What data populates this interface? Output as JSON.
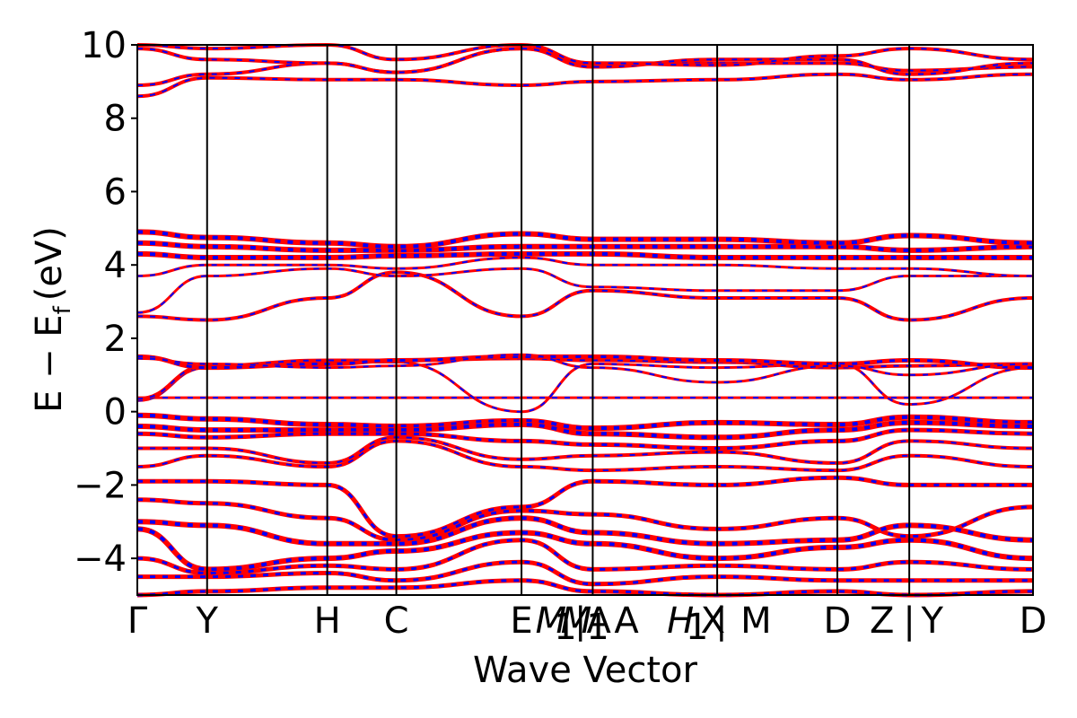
{
  "chart_data": {
    "type": "line",
    "title": "",
    "xlabel": "Wave Vector",
    "ylabel": "E − E",
    "ylabel_sub": "f",
    "ylabel_unit": "(eV)",
    "ylim": [
      -5,
      10
    ],
    "yticks": [
      -4,
      -2,
      0,
      2,
      4,
      6,
      8,
      10
    ],
    "ytick_labels": [
      "−4",
      "−2",
      "0",
      "2",
      "4",
      "6",
      "8",
      "10"
    ],
    "grid": false,
    "legend": "none",
    "series_colors": {
      "spin_a": "#ff0000",
      "spin_b": "#0000ff"
    },
    "x_range": [
      0,
      12.45
    ],
    "high_symmetry_points": [
      {
        "label": "Γ",
        "x": 0.0
      },
      {
        "label": "Y",
        "x": 0.97
      },
      {
        "label": "H",
        "x": 2.64
      },
      {
        "label": "C",
        "x": 3.6
      },
      {
        "label": "E",
        "x": 5.34,
        "italic_suffix": "M",
        "suffix_sub": "1",
        "suffix2": "M"
      },
      {
        "label": "A",
        "x": 6.33,
        "prefix": "|",
        "prefix_italic": "A",
        "prefix_sub": "1"
      },
      {
        "label": "X",
        "x": 8.06,
        "prefix_italic": "H",
        "prefix_sub": "1",
        "suffix": "|"
      },
      {
        "label": "M",
        "x": 8.06
      },
      {
        "label": "D",
        "x": 9.73
      },
      {
        "label": "Z",
        "x": 10.73,
        "suffix": "|"
      },
      {
        "label": "Y",
        "x": 10.73
      },
      {
        "label": "D",
        "x": 12.45
      }
    ],
    "x_tick_texts": [
      {
        "text": "Γ",
        "x": 0.0
      },
      {
        "text": "Y",
        "x": 0.97
      },
      {
        "text": "H",
        "x": 2.64
      },
      {
        "text": "C",
        "x": 3.6
      },
      {
        "text": "E",
        "x": 5.34
      },
      {
        "text": "M",
        "x": 5.75,
        "italic": true
      },
      {
        "text": "1",
        "x": 5.95,
        "sub": true
      },
      {
        "text": "M",
        "x": 6.1,
        "italic": true
      },
      {
        "text": "|A",
        "x": 6.33
      },
      {
        "text": "1",
        "x": 6.4,
        "sub": true
      },
      {
        "text": "A",
        "x": 6.8
      },
      {
        "text": "H",
        "x": 7.55,
        "italic": true
      },
      {
        "text": "1",
        "x": 7.78,
        "sub": true
      },
      {
        "text": "X",
        "x": 8.0
      },
      {
        "text": "|",
        "x": 8.12
      },
      {
        "text": "M",
        "x": 8.6
      },
      {
        "text": "D",
        "x": 9.73
      },
      {
        "text": "Z",
        "x": 10.35
      },
      {
        "text": "|",
        "x": 10.73
      },
      {
        "text": "Y",
        "x": 11.05
      },
      {
        "text": "D",
        "x": 12.45
      }
    ],
    "segment_boundaries": [
      0.0,
      0.97,
      2.64,
      3.6,
      5.34,
      6.33,
      8.06,
      9.73,
      10.73,
      12.45
    ],
    "bands": [
      {
        "name": "flat-band",
        "y": [
          0.38,
          0.38,
          0.38,
          0.38,
          0.38,
          0.38,
          0.38,
          0.38,
          0.38,
          0.38
        ],
        "width": 3
      },
      {
        "name": "cb1",
        "y": [
          0.3,
          1.2,
          1.35,
          1.35,
          0.0,
          1.3,
          1.2,
          1.3,
          0.2,
          1.2
        ],
        "width": 3
      },
      {
        "name": "cb2",
        "y": [
          0.35,
          1.25,
          1.4,
          1.4,
          1.45,
          1.4,
          1.35,
          1.2,
          1.25,
          1.3
        ],
        "width": 4
      },
      {
        "name": "cb3",
        "y": [
          1.5,
          1.2,
          1.3,
          1.4,
          1.5,
          1.5,
          1.4,
          1.3,
          1.4,
          1.2
        ],
        "width": 5
      },
      {
        "name": "cb4",
        "y": [
          1.45,
          1.3,
          1.2,
          1.25,
          1.55,
          1.2,
          0.8,
          1.25,
          1.0,
          1.3
        ],
        "width": 3
      },
      {
        "name": "cb5",
        "y": [
          2.6,
          2.5,
          3.1,
          3.8,
          2.6,
          3.3,
          3.1,
          3.1,
          2.5,
          3.1
        ],
        "width": 4
      },
      {
        "name": "cb6",
        "y": [
          2.7,
          3.7,
          3.9,
          3.7,
          3.9,
          3.4,
          3.3,
          3.3,
          3.7,
          3.7
        ],
        "width": 3
      },
      {
        "name": "cb7",
        "y": [
          3.7,
          4.0,
          4.0,
          3.9,
          4.2,
          4.0,
          4.0,
          3.9,
          3.9,
          3.7
        ],
        "width": 3
      },
      {
        "name": "cb8",
        "y": [
          4.3,
          4.2,
          4.2,
          4.25,
          4.3,
          4.3,
          4.2,
          4.2,
          4.2,
          4.2
        ],
        "width": 6
      },
      {
        "name": "cb9",
        "y": [
          4.6,
          4.5,
          4.4,
          4.4,
          4.5,
          4.5,
          4.5,
          4.5,
          4.4,
          4.5
        ],
        "width": 6
      },
      {
        "name": "cb10",
        "y": [
          4.9,
          4.75,
          4.6,
          4.5,
          4.85,
          4.7,
          4.7,
          4.6,
          4.8,
          4.6
        ],
        "width": 6
      },
      {
        "name": "hb1",
        "y": [
          8.6,
          9.1,
          9.05,
          9.05,
          8.9,
          9.0,
          9.05,
          9.2,
          9.05,
          9.2
        ],
        "width": 4
      },
      {
        "name": "hb2",
        "y": [
          8.9,
          9.2,
          9.5,
          9.25,
          9.9,
          9.5,
          9.5,
          9.5,
          9.3,
          9.4
        ],
        "width": 4
      },
      {
        "name": "hb3",
        "y": [
          9.9,
          9.6,
          9.5,
          9.25,
          9.9,
          9.4,
          9.6,
          9.6,
          9.2,
          9.5
        ],
        "width": 4
      },
      {
        "name": "hb4",
        "y": [
          10.0,
          9.9,
          10.0,
          9.6,
          10.0,
          9.5,
          9.45,
          9.7,
          9.9,
          9.6
        ],
        "width": 4
      },
      {
        "name": "vb1",
        "y": [
          -0.1,
          -0.2,
          -0.35,
          -0.4,
          -0.25,
          -0.45,
          -0.3,
          -0.35,
          -0.15,
          -0.3
        ],
        "width": 6
      },
      {
        "name": "vb2",
        "y": [
          -0.4,
          -0.5,
          -0.5,
          -0.5,
          -0.35,
          -0.6,
          -0.7,
          -0.5,
          -0.3,
          -0.4
        ],
        "width": 6
      },
      {
        "name": "vb3",
        "y": [
          -0.6,
          -0.7,
          -0.6,
          -0.6,
          -0.8,
          -0.9,
          -1.0,
          -0.8,
          -0.5,
          -0.6
        ],
        "width": 5
      },
      {
        "name": "vb4",
        "y": [
          -1.0,
          -1.0,
          -1.4,
          -0.7,
          -1.3,
          -1.2,
          -1.1,
          -1.4,
          -0.8,
          -1.0
        ],
        "width": 4
      },
      {
        "name": "vb5",
        "y": [
          -1.5,
          -1.2,
          -1.5,
          -0.8,
          -1.5,
          -1.6,
          -1.5,
          -1.6,
          -1.2,
          -1.5
        ],
        "width": 4
      },
      {
        "name": "vb6",
        "y": [
          -1.9,
          -1.9,
          -2.0,
          -3.4,
          -2.6,
          -1.9,
          -2.0,
          -1.8,
          -2.0,
          -2.0
        ],
        "width": 5
      },
      {
        "name": "vb7",
        "y": [
          -2.4,
          -2.5,
          -2.9,
          -3.5,
          -2.7,
          -2.8,
          -3.2,
          -2.9,
          -3.4,
          -2.6
        ],
        "width": 5
      },
      {
        "name": "vb8",
        "y": [
          -3.0,
          -3.1,
          -3.6,
          -3.6,
          -2.9,
          -3.3,
          -3.6,
          -3.5,
          -3.1,
          -3.5
        ],
        "width": 6
      },
      {
        "name": "vb9",
        "y": [
          -3.2,
          -4.3,
          -4.0,
          -3.8,
          -3.3,
          -3.6,
          -4.0,
          -3.7,
          -3.5,
          -4.0
        ],
        "width": 6
      },
      {
        "name": "vb10",
        "y": [
          -4.0,
          -4.4,
          -4.2,
          -4.3,
          -3.5,
          -4.3,
          -4.2,
          -4.3,
          -4.1,
          -4.3
        ],
        "width": 5
      },
      {
        "name": "vb11",
        "y": [
          -4.5,
          -4.5,
          -4.4,
          -4.6,
          -4.1,
          -4.7,
          -4.5,
          -4.6,
          -4.6,
          -4.6
        ],
        "width": 5
      },
      {
        "name": "vb12",
        "y": [
          -5.0,
          -4.9,
          -4.8,
          -4.8,
          -4.6,
          -4.9,
          -5.0,
          -4.9,
          -5.0,
          -4.9
        ],
        "width": 5
      }
    ]
  }
}
